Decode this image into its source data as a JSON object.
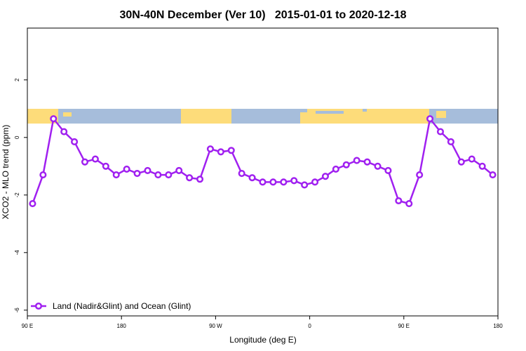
{
  "chart_data": {
    "type": "line",
    "title": "30N-40N December (Ver 10)   2015-01-01 to 2020-12-18",
    "xlabel": "Longitude (deg E)",
    "ylabel": "XCO2 - MLO trend (ppm)",
    "x": [
      95,
      105,
      115,
      125,
      135,
      145,
      155,
      165,
      175,
      185,
      195,
      205,
      215,
      225,
      235,
      245,
      255,
      265,
      275,
      285,
      295,
      305,
      315,
      325,
      335,
      345,
      355,
      365,
      375,
      385,
      395,
      405,
      415,
      425,
      435,
      445,
      455,
      465,
      475,
      485,
      495,
      505,
      515,
      525,
      535
    ],
    "series": [
      {
        "name": "Land (Nadir&Glint) and Ocean (Glint)",
        "color": "#a020f0",
        "values": [
          -2.3,
          -1.3,
          0.65,
          0.2,
          -0.15,
          -0.85,
          -0.75,
          -1.0,
          -1.3,
          -1.1,
          -1.25,
          -1.15,
          -1.3,
          -1.3,
          -1.15,
          -1.4,
          -1.45,
          -0.4,
          -0.5,
          -0.45,
          -1.25,
          -1.4,
          -1.55,
          -1.55,
          -1.55,
          -1.5,
          -1.65,
          -1.55,
          -1.35,
          -1.1,
          -0.95,
          -0.8,
          -0.85,
          -1.0,
          -1.15,
          -2.2,
          -2.3,
          -1.3,
          0.65,
          0.2,
          -0.15,
          -0.85,
          -0.75,
          -1.0,
          -1.3
        ]
      }
    ],
    "xlim": [
      90,
      540
    ],
    "xticks": [
      {
        "value": 90,
        "label": "90 E"
      },
      180,
      {
        "value": 270,
        "label": "90 W"
      },
      {
        "value": 360,
        "label": "0"
      },
      {
        "value": 450,
        "label": "90 E"
      },
      180
    ],
    "ylim": [
      -6.2,
      3.8
    ],
    "yticks": [
      -6,
      -4,
      -2,
      0,
      2
    ],
    "legend": "bottom-left"
  }
}
